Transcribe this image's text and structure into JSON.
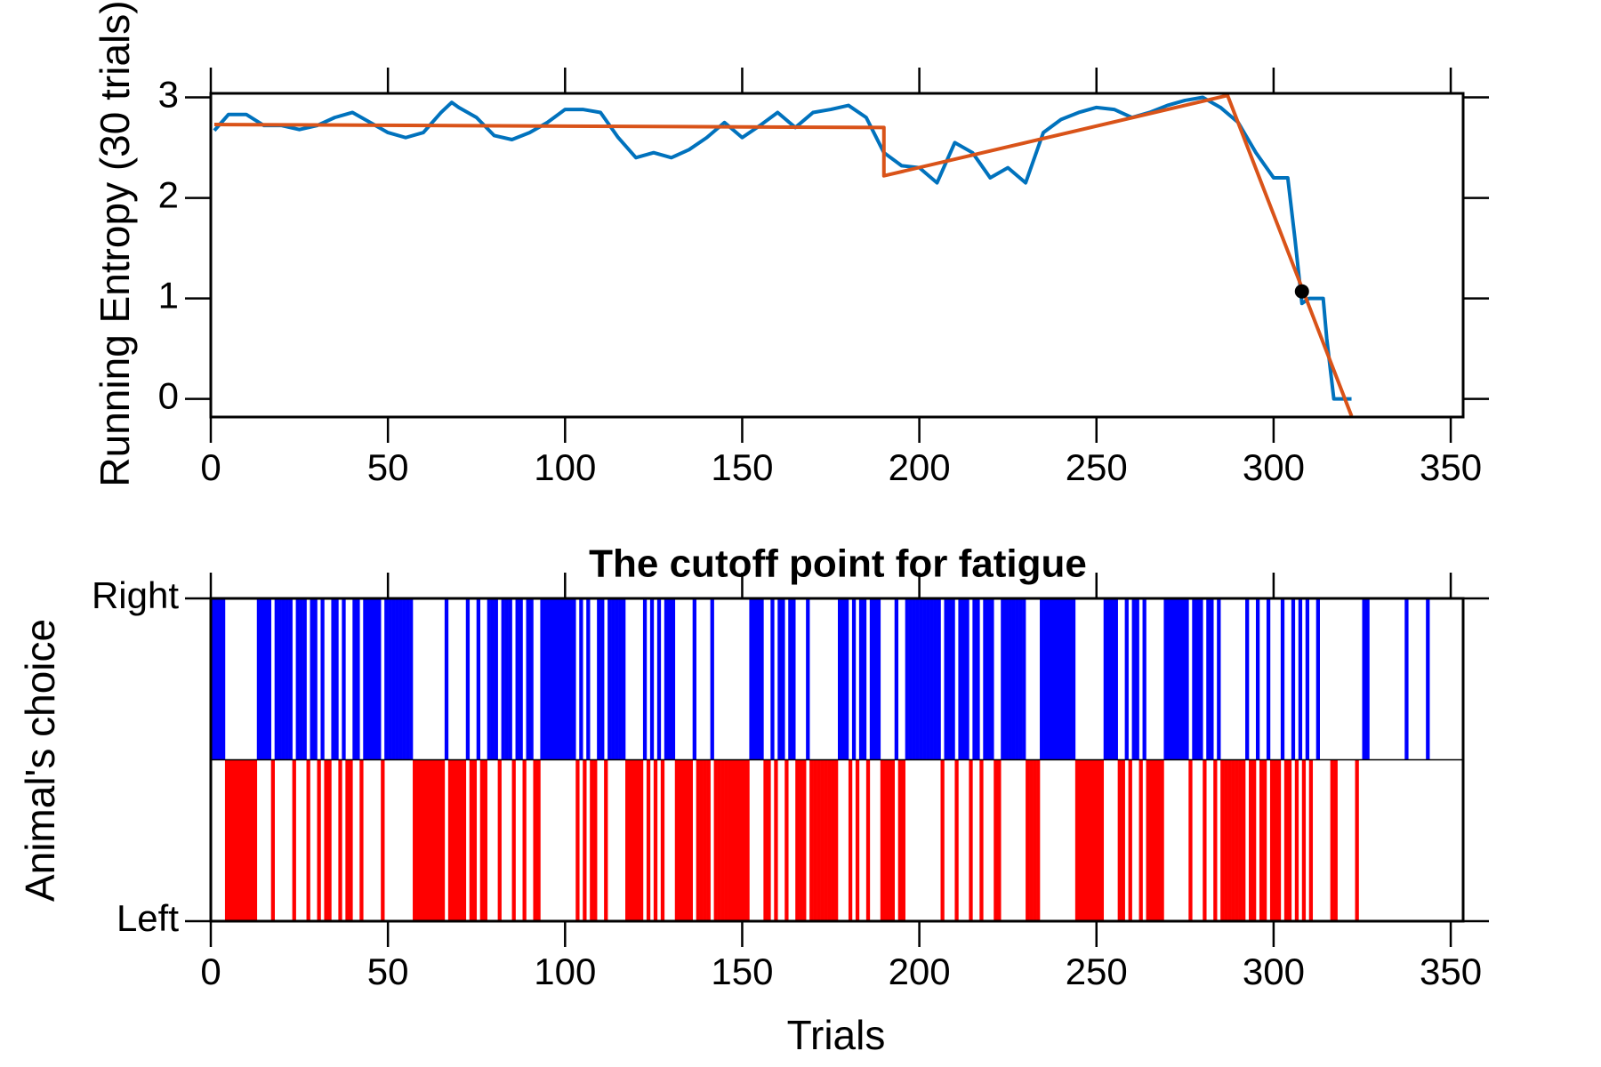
{
  "chart_data": [
    {
      "type": "line",
      "ylabel": "Running Entropy (30 trials)",
      "xlim": [
        0,
        353.5
      ],
      "ylim": [
        -0.18,
        3.04
      ],
      "xticks": [
        0,
        50,
        100,
        150,
        200,
        250,
        300,
        350
      ],
      "yticks": [
        0,
        1,
        2,
        3
      ],
      "series": [
        {
          "color": "#0072bd",
          "x": [
            1,
            5,
            10,
            15,
            20,
            25,
            30,
            35,
            40,
            45,
            50,
            55,
            60,
            65,
            68,
            70,
            75,
            80,
            85,
            90,
            95,
            100,
            105,
            110,
            115,
            120,
            125,
            130,
            135,
            140,
            145,
            150,
            155,
            160,
            165,
            170,
            175,
            180,
            185,
            190,
            195,
            200,
            205,
            210,
            215,
            220,
            225,
            230,
            235,
            240,
            245,
            250,
            255,
            260,
            265,
            270,
            275,
            280,
            285,
            290,
            295,
            300,
            304,
            306,
            308,
            310,
            314,
            315,
            317,
            322
          ],
          "values": [
            2.67,
            2.83,
            2.83,
            2.72,
            2.72,
            2.68,
            2.72,
            2.8,
            2.85,
            2.75,
            2.65,
            2.6,
            2.65,
            2.85,
            2.95,
            2.9,
            2.8,
            2.62,
            2.58,
            2.65,
            2.75,
            2.88,
            2.88,
            2.85,
            2.6,
            2.4,
            2.45,
            2.4,
            2.48,
            2.6,
            2.75,
            2.6,
            2.72,
            2.85,
            2.7,
            2.85,
            2.88,
            2.92,
            2.8,
            2.45,
            2.32,
            2.3,
            2.15,
            2.55,
            2.45,
            2.2,
            2.3,
            2.15,
            2.65,
            2.78,
            2.85,
            2.9,
            2.88,
            2.8,
            2.85,
            2.92,
            2.97,
            3.0,
            2.9,
            2.75,
            2.45,
            2.2,
            2.2,
            1.6,
            0.95,
            1.0,
            1.0,
            0.6,
            0,
            0
          ]
        },
        {
          "color": "#d95319",
          "x": [
            1,
            190,
            190,
            287,
            322
          ],
          "values": [
            2.73,
            2.7,
            2.22,
            3.02,
            -0.17
          ]
        }
      ],
      "marker": {
        "x": 308,
        "y": 1.07,
        "color": "#000000"
      }
    },
    {
      "type": "barcode",
      "title": "The cutoff point for fatigue",
      "xlabel": "Trials",
      "ylabel": "Animal's choice",
      "xlim": [
        0,
        353.5
      ],
      "ylim": [
        0,
        1
      ],
      "xticks": [
        0,
        50,
        100,
        150,
        200,
        250,
        300,
        350
      ],
      "yticks": [
        {
          "value": 0,
          "label": "Left"
        },
        {
          "value": 1,
          "label": "Right"
        }
      ],
      "colors": [
        "#ff0000",
        "#0000ff"
      ],
      "values": [
        1,
        1,
        1,
        1,
        0,
        0,
        0,
        0,
        0,
        0,
        0,
        0,
        0,
        1,
        1,
        1,
        1,
        0,
        1,
        1,
        1,
        1,
        1,
        0,
        1,
        1,
        1,
        0,
        1,
        1,
        0,
        1,
        0,
        0,
        1,
        1,
        0,
        1,
        0,
        0,
        1,
        1,
        0,
        1,
        1,
        1,
        1,
        1,
        0,
        1,
        1,
        1,
        1,
        1,
        1,
        1,
        1,
        0,
        0,
        0,
        0,
        0,
        0,
        0,
        0,
        0,
        1,
        0,
        0,
        0,
        0,
        0,
        1,
        0,
        0,
        1,
        0,
        0,
        1,
        1,
        1,
        0,
        1,
        1,
        1,
        0,
        1,
        1,
        0,
        1,
        1,
        0,
        0,
        1,
        1,
        1,
        1,
        1,
        1,
        1,
        1,
        1,
        1,
        0,
        1,
        0,
        1,
        0,
        0,
        1,
        1,
        0,
        1,
        1,
        1,
        1,
        1,
        0,
        0,
        0,
        0,
        0,
        1,
        0,
        1,
        0,
        1,
        0,
        1,
        1,
        1,
        0,
        0,
        0,
        0,
        0,
        1,
        0,
        0,
        0,
        0,
        1,
        0,
        0,
        0,
        0,
        0,
        0,
        0,
        0,
        0,
        0,
        1,
        1,
        1,
        1,
        0,
        0,
        1,
        0,
        1,
        1,
        0,
        1,
        1,
        0,
        0,
        0,
        1,
        0,
        0,
        0,
        0,
        0,
        0,
        0,
        0,
        1,
        1,
        1,
        0,
        1,
        0,
        1,
        1,
        0,
        1,
        1,
        1,
        0,
        0,
        0,
        0,
        1,
        0,
        0,
        1,
        1,
        1,
        1,
        1,
        1,
        1,
        1,
        1,
        1,
        0,
        1,
        1,
        1,
        0,
        1,
        1,
        1,
        0,
        1,
        1,
        0,
        1,
        1,
        1,
        0,
        0,
        1,
        1,
        1,
        1,
        1,
        1,
        1,
        0,
        0,
        0,
        0,
        1,
        1,
        1,
        1,
        1,
        1,
        1,
        1,
        1,
        1,
        0,
        0,
        0,
        0,
        0,
        0,
        0,
        0,
        1,
        1,
        1,
        1,
        0,
        0,
        1,
        0,
        1,
        1,
        0,
        1,
        0,
        0,
        0,
        0,
        0,
        1,
        1,
        1,
        1,
        1,
        1,
        1,
        0,
        1,
        1,
        1,
        0,
        1,
        1,
        0,
        1,
        0,
        0,
        0,
        0,
        0,
        0,
        0,
        1,
        0,
        0,
        1,
        0,
        0,
        1,
        0,
        0,
        0,
        1,
        0,
        0,
        1,
        0,
        1,
        0,
        1,
        0,
        null,
        1,
        null,
        null,
        null,
        0,
        0,
        null,
        null,
        null,
        null,
        null,
        0,
        null,
        1,
        1,
        null,
        null,
        null,
        null,
        null,
        null,
        null,
        null,
        null,
        null,
        1,
        null,
        null,
        null,
        null,
        null,
        1
      ]
    }
  ]
}
